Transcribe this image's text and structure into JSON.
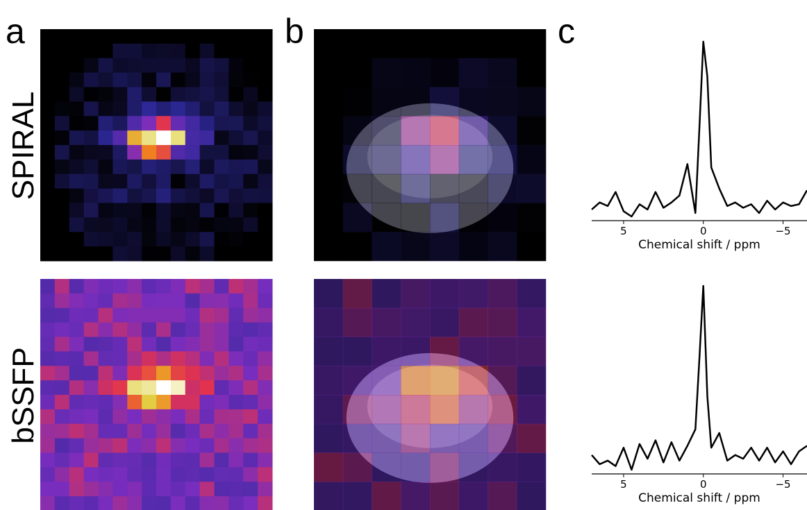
{
  "panel_labels": [
    "a",
    "b",
    "c"
  ],
  "row_labels": [
    "SPIRAL",
    "bSSFP"
  ],
  "chart_data": [
    {
      "type": "line",
      "color": "#000000",
      "xlabel": "Chemical shift / ppm",
      "x": [
        7,
        6.5,
        6,
        5.5,
        5,
        4.5,
        4,
        3.5,
        3,
        2.5,
        2,
        1.5,
        1,
        0.5,
        0.25,
        0,
        -0.25,
        -0.5,
        -1,
        -1.5,
        -2,
        -2.5,
        -3,
        -3.5,
        -4,
        -4.5,
        -5,
        -5.5,
        -6,
        -6.5
      ],
      "values": [
        0.04,
        0.08,
        0.06,
        0.14,
        0.03,
        0.0,
        0.07,
        0.04,
        0.14,
        0.05,
        0.08,
        0.12,
        0.3,
        0.02,
        0.5,
        1.0,
        0.8,
        0.28,
        0.16,
        0.06,
        0.08,
        0.05,
        0.07,
        0.02,
        0.09,
        0.04,
        0.08,
        0.06,
        0.07,
        0.15
      ],
      "xlim": [
        7,
        -6.5
      ],
      "xticks": [
        5,
        0,
        {
          "value": -5,
          "label": "−5"
        }
      ]
    },
    {
      "type": "line",
      "color": "#000000",
      "xlabel": "Chemical shift / ppm",
      "x": [
        7,
        6.5,
        6,
        5.5,
        5,
        4.5,
        4,
        3.5,
        3,
        2.5,
        2,
        1.5,
        1,
        0.5,
        0.25,
        0,
        -0.25,
        -0.5,
        -1,
        -1.5,
        -2,
        -2.5,
        -3,
        -3.5,
        -4,
        -4.5,
        -5,
        -5.5,
        -6,
        -6.5
      ],
      "values": [
        0.08,
        0.03,
        0.05,
        0.02,
        0.12,
        0.0,
        0.14,
        0.06,
        0.16,
        0.04,
        0.15,
        0.05,
        0.13,
        0.22,
        0.6,
        1.0,
        0.4,
        0.12,
        0.2,
        0.05,
        0.08,
        0.06,
        0.12,
        0.05,
        0.12,
        0.04,
        0.1,
        0.03,
        0.1,
        0.13
      ],
      "xlim": [
        7,
        -6.5
      ],
      "xticks": [
        5,
        0,
        {
          "value": -5,
          "label": "−5"
        }
      ]
    }
  ]
}
